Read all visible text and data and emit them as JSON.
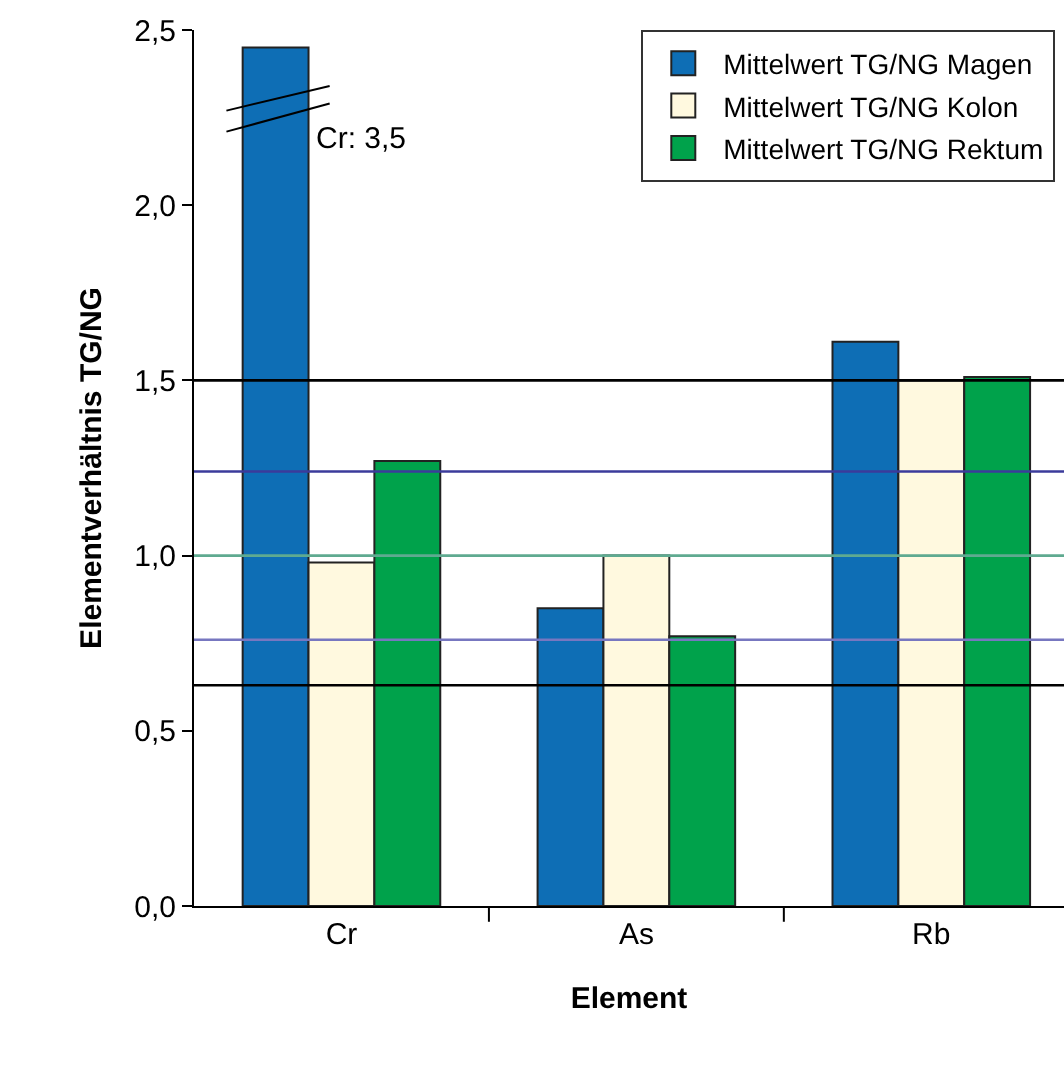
{
  "chart_data": {
    "type": "bar",
    "xlabel": "Element",
    "ylabel": "Elementverhältnis TG/NG",
    "categories": [
      "Cr",
      "As",
      "Rb"
    ],
    "series": [
      {
        "name": "Mittelwert TG/NG Magen",
        "color": "#0e6eb5",
        "values": [
          2.45,
          0.85,
          1.61
        ]
      },
      {
        "name": "Mittelwert TG/NG Kolon",
        "color": "#fff9df",
        "values": [
          0.98,
          1.0,
          1.5
        ]
      },
      {
        "name": "Mittelwert TG/NG Rektum",
        "color": "#00a24b",
        "values": [
          1.27,
          0.77,
          1.51
        ]
      }
    ],
    "ylim": [
      0,
      2.5
    ],
    "yticks": [
      {
        "value": 0,
        "label": "0,0"
      },
      {
        "value": 0.5,
        "label": "0,5"
      },
      {
        "value": 1,
        "label": "1,0"
      },
      {
        "value": 1.5,
        "label": "1,5"
      },
      {
        "value": 2,
        "label": "2,0"
      },
      {
        "value": 2.5,
        "label": "2,5"
      }
    ],
    "ref_lines": [
      {
        "axis": "y",
        "value": 1.5,
        "color": "#000000"
      },
      {
        "axis": "y",
        "value": 1.24,
        "color": "#3b3b9b"
      },
      {
        "axis": "y",
        "value": 1.0,
        "color": "#5faa90"
      },
      {
        "axis": "y",
        "value": 0.76,
        "color": "#7777c0"
      },
      {
        "axis": "y",
        "value": 0.63,
        "color": "#000000"
      }
    ],
    "annotations": [
      "Cr: 3,5"
    ],
    "grid": false,
    "legend": "top right"
  }
}
